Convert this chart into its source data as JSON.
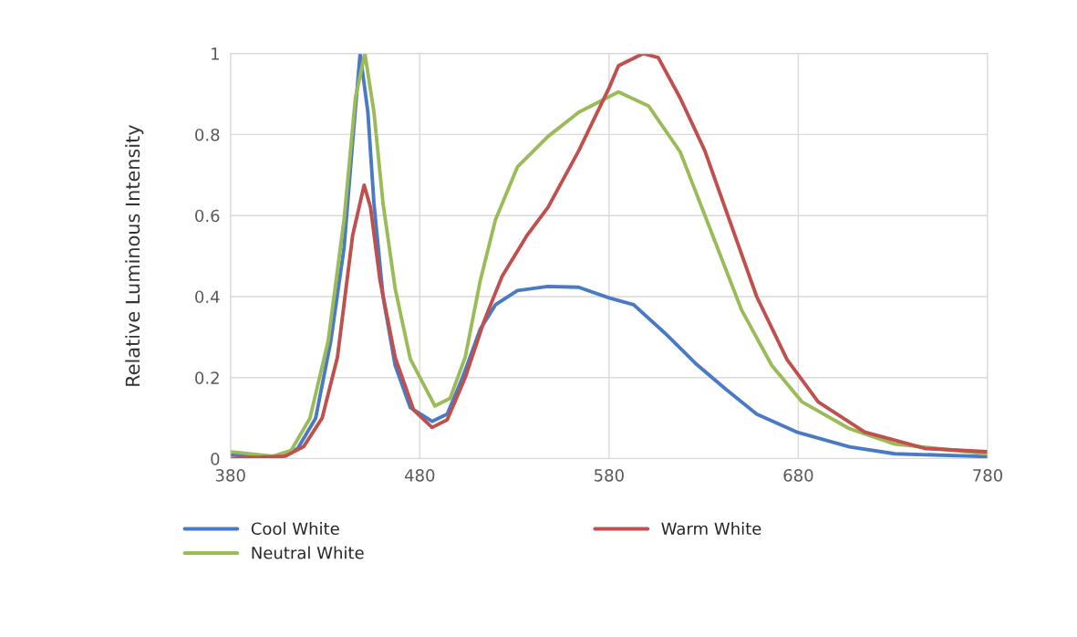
{
  "chart_data": {
    "type": "line",
    "ylabel": "Relative Luminous Intensity",
    "xlim": [
      380,
      780
    ],
    "xticks": [
      380,
      480,
      580,
      680,
      780
    ],
    "ylim": [
      0,
      1
    ],
    "yticks": [
      0,
      0.2,
      0.4,
      0.6,
      0.8,
      1
    ],
    "grid": true,
    "legend": "bottom",
    "marker": "none",
    "line_style": "solid",
    "series": [
      {
        "name": "Cool White",
        "color": "#4a7ac4",
        "x": [
          380,
          402.6,
          415.5,
          425,
          433,
          440,
          444.5,
          448.5,
          452.6,
          455.8,
          460.6,
          467,
          475,
          486.5,
          494.5,
          502.6,
          512,
          520,
          531.6,
          547.7,
          563.9,
          580,
          593,
          609.5,
          625.7,
          642,
          658,
          679,
          707,
          731,
          780
        ],
        "values": [
          0.01,
          0.0,
          0.025,
          0.1,
          0.29,
          0.52,
          0.78,
          1.0,
          0.855,
          0.63,
          0.4,
          0.23,
          0.126,
          0.092,
          0.11,
          0.2,
          0.32,
          0.38,
          0.415,
          0.425,
          0.423,
          0.397,
          0.38,
          0.31,
          0.235,
          0.17,
          0.11,
          0.066,
          0.029,
          0.012,
          0.005
        ]
      },
      {
        "name": "Neutral White",
        "color": "#9bbb59",
        "x": [
          380,
          402.6,
          412,
          422,
          431.6,
          440,
          446,
          451,
          455.8,
          460.6,
          467,
          475,
          488,
          496,
          504,
          512,
          520,
          531.6,
          547.7,
          564,
          585,
          601,
          617.6,
          634,
          650,
          666,
          682,
          707,
          731,
          780
        ],
        "values": [
          0.017,
          0.006,
          0.02,
          0.1,
          0.29,
          0.59,
          0.89,
          1.0,
          0.855,
          0.63,
          0.42,
          0.246,
          0.13,
          0.149,
          0.25,
          0.44,
          0.59,
          0.72,
          0.795,
          0.855,
          0.905,
          0.87,
          0.757,
          0.56,
          0.367,
          0.23,
          0.14,
          0.074,
          0.036,
          0.012
        ]
      },
      {
        "name": "Warm White",
        "color": "#c0504d",
        "x": [
          380,
          409,
          418.7,
          428.4,
          436.5,
          444.5,
          450.6,
          454,
          459,
          467,
          476.8,
          486.5,
          494.5,
          504,
          514,
          523.5,
          536.5,
          547.7,
          564,
          580,
          585,
          598,
          606,
          617.6,
          630.6,
          642,
          658,
          674,
          690.5,
          715,
          747,
          780
        ],
        "values": [
          0.0,
          0.006,
          0.03,
          0.1,
          0.25,
          0.55,
          0.675,
          0.62,
          0.44,
          0.25,
          0.12,
          0.077,
          0.096,
          0.2,
          0.34,
          0.45,
          0.55,
          0.62,
          0.76,
          0.915,
          0.97,
          1.0,
          0.99,
          0.89,
          0.76,
          0.61,
          0.4,
          0.245,
          0.14,
          0.066,
          0.025,
          0.017
        ]
      }
    ]
  }
}
